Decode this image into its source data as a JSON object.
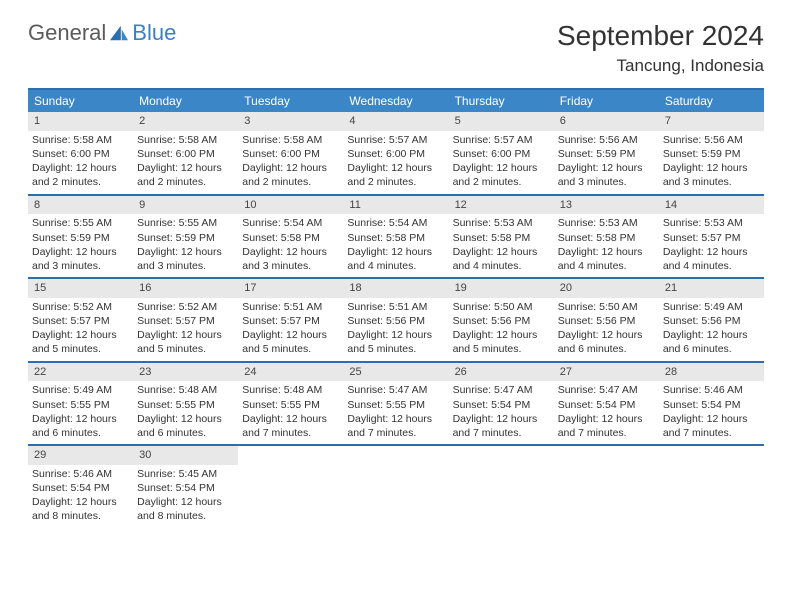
{
  "logo": {
    "general": "General",
    "blue": "Blue"
  },
  "title": "September 2024",
  "location": "Tancung, Indonesia",
  "colors": {
    "header_bg": "#3b86c7",
    "header_border": "#2b6fb0",
    "daynum_bg": "#e8e8e8",
    "text": "#333333",
    "logo_gray": "#5a5a5a",
    "logo_blue": "#3b7fc4"
  },
  "dow": [
    "Sunday",
    "Monday",
    "Tuesday",
    "Wednesday",
    "Thursday",
    "Friday",
    "Saturday"
  ],
  "days": [
    {
      "n": "1",
      "sr": "5:58 AM",
      "ss": "6:00 PM",
      "dl": "12 hours and 2 minutes."
    },
    {
      "n": "2",
      "sr": "5:58 AM",
      "ss": "6:00 PM",
      "dl": "12 hours and 2 minutes."
    },
    {
      "n": "3",
      "sr": "5:58 AM",
      "ss": "6:00 PM",
      "dl": "12 hours and 2 minutes."
    },
    {
      "n": "4",
      "sr": "5:57 AM",
      "ss": "6:00 PM",
      "dl": "12 hours and 2 minutes."
    },
    {
      "n": "5",
      "sr": "5:57 AM",
      "ss": "6:00 PM",
      "dl": "12 hours and 2 minutes."
    },
    {
      "n": "6",
      "sr": "5:56 AM",
      "ss": "5:59 PM",
      "dl": "12 hours and 3 minutes."
    },
    {
      "n": "7",
      "sr": "5:56 AM",
      "ss": "5:59 PM",
      "dl": "12 hours and 3 minutes."
    },
    {
      "n": "8",
      "sr": "5:55 AM",
      "ss": "5:59 PM",
      "dl": "12 hours and 3 minutes."
    },
    {
      "n": "9",
      "sr": "5:55 AM",
      "ss": "5:59 PM",
      "dl": "12 hours and 3 minutes."
    },
    {
      "n": "10",
      "sr": "5:54 AM",
      "ss": "5:58 PM",
      "dl": "12 hours and 3 minutes."
    },
    {
      "n": "11",
      "sr": "5:54 AM",
      "ss": "5:58 PM",
      "dl": "12 hours and 4 minutes."
    },
    {
      "n": "12",
      "sr": "5:53 AM",
      "ss": "5:58 PM",
      "dl": "12 hours and 4 minutes."
    },
    {
      "n": "13",
      "sr": "5:53 AM",
      "ss": "5:58 PM",
      "dl": "12 hours and 4 minutes."
    },
    {
      "n": "14",
      "sr": "5:53 AM",
      "ss": "5:57 PM",
      "dl": "12 hours and 4 minutes."
    },
    {
      "n": "15",
      "sr": "5:52 AM",
      "ss": "5:57 PM",
      "dl": "12 hours and 5 minutes."
    },
    {
      "n": "16",
      "sr": "5:52 AM",
      "ss": "5:57 PM",
      "dl": "12 hours and 5 minutes."
    },
    {
      "n": "17",
      "sr": "5:51 AM",
      "ss": "5:57 PM",
      "dl": "12 hours and 5 minutes."
    },
    {
      "n": "18",
      "sr": "5:51 AM",
      "ss": "5:56 PM",
      "dl": "12 hours and 5 minutes."
    },
    {
      "n": "19",
      "sr": "5:50 AM",
      "ss": "5:56 PM",
      "dl": "12 hours and 5 minutes."
    },
    {
      "n": "20",
      "sr": "5:50 AM",
      "ss": "5:56 PM",
      "dl": "12 hours and 6 minutes."
    },
    {
      "n": "21",
      "sr": "5:49 AM",
      "ss": "5:56 PM",
      "dl": "12 hours and 6 minutes."
    },
    {
      "n": "22",
      "sr": "5:49 AM",
      "ss": "5:55 PM",
      "dl": "12 hours and 6 minutes."
    },
    {
      "n": "23",
      "sr": "5:48 AM",
      "ss": "5:55 PM",
      "dl": "12 hours and 6 minutes."
    },
    {
      "n": "24",
      "sr": "5:48 AM",
      "ss": "5:55 PM",
      "dl": "12 hours and 7 minutes."
    },
    {
      "n": "25",
      "sr": "5:47 AM",
      "ss": "5:55 PM",
      "dl": "12 hours and 7 minutes."
    },
    {
      "n": "26",
      "sr": "5:47 AM",
      "ss": "5:54 PM",
      "dl": "12 hours and 7 minutes."
    },
    {
      "n": "27",
      "sr": "5:47 AM",
      "ss": "5:54 PM",
      "dl": "12 hours and 7 minutes."
    },
    {
      "n": "28",
      "sr": "5:46 AM",
      "ss": "5:54 PM",
      "dl": "12 hours and 7 minutes."
    },
    {
      "n": "29",
      "sr": "5:46 AM",
      "ss": "5:54 PM",
      "dl": "12 hours and 8 minutes."
    },
    {
      "n": "30",
      "sr": "5:45 AM",
      "ss": "5:54 PM",
      "dl": "12 hours and 8 minutes."
    }
  ],
  "labels": {
    "sunrise": "Sunrise: ",
    "sunset": "Sunset: ",
    "daylight": "Daylight: "
  }
}
